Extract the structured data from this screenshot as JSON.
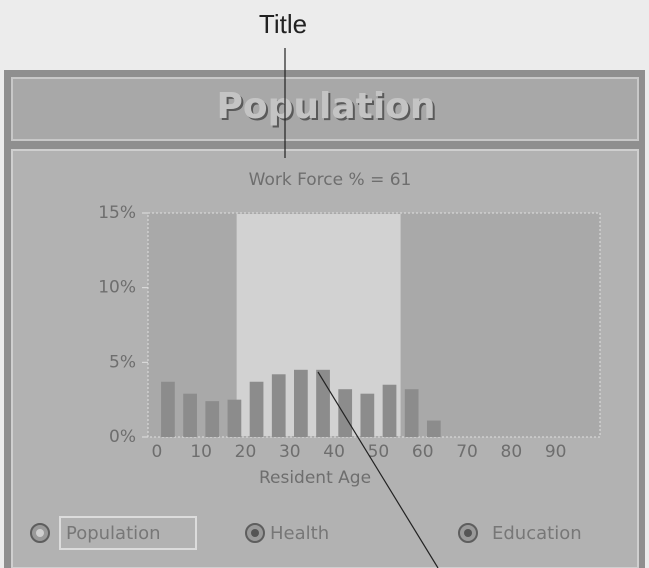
{
  "callout": "Title",
  "window_title": "Population",
  "chart_data": {
    "type": "histogram",
    "title": "Work Force % = 61",
    "bins": [
      0,
      5,
      10,
      15,
      20,
      25,
      30,
      35,
      40,
      45,
      50,
      55,
      60,
      65
    ],
    "values": [
      3.7,
      2.9,
      2.4,
      2.5,
      3.7,
      4.2,
      4.5,
      4.5,
      3.2,
      2.9,
      3.5,
      3.2,
      1.1
    ],
    "color": "#8c8c8c",
    "highlight_range": [
      18,
      55
    ],
    "xlim": [
      -2,
      100
    ],
    "xticks": [
      0,
      10,
      20,
      30,
      40,
      50,
      60,
      70,
      80,
      90
    ],
    "xlabel": "Resident Age",
    "ylim": [
      0,
      15
    ],
    "yticks": [
      {
        "value": 0,
        "label": "0%"
      },
      {
        "value": 5,
        "label": "5%"
      },
      {
        "value": 10,
        "label": "10%"
      },
      {
        "value": 15,
        "label": "15%"
      }
    ]
  },
  "buttons": [
    {
      "label": "Population",
      "selected": true
    },
    {
      "label": "Health",
      "selected": false
    },
    {
      "label": "Education",
      "selected": false
    }
  ]
}
